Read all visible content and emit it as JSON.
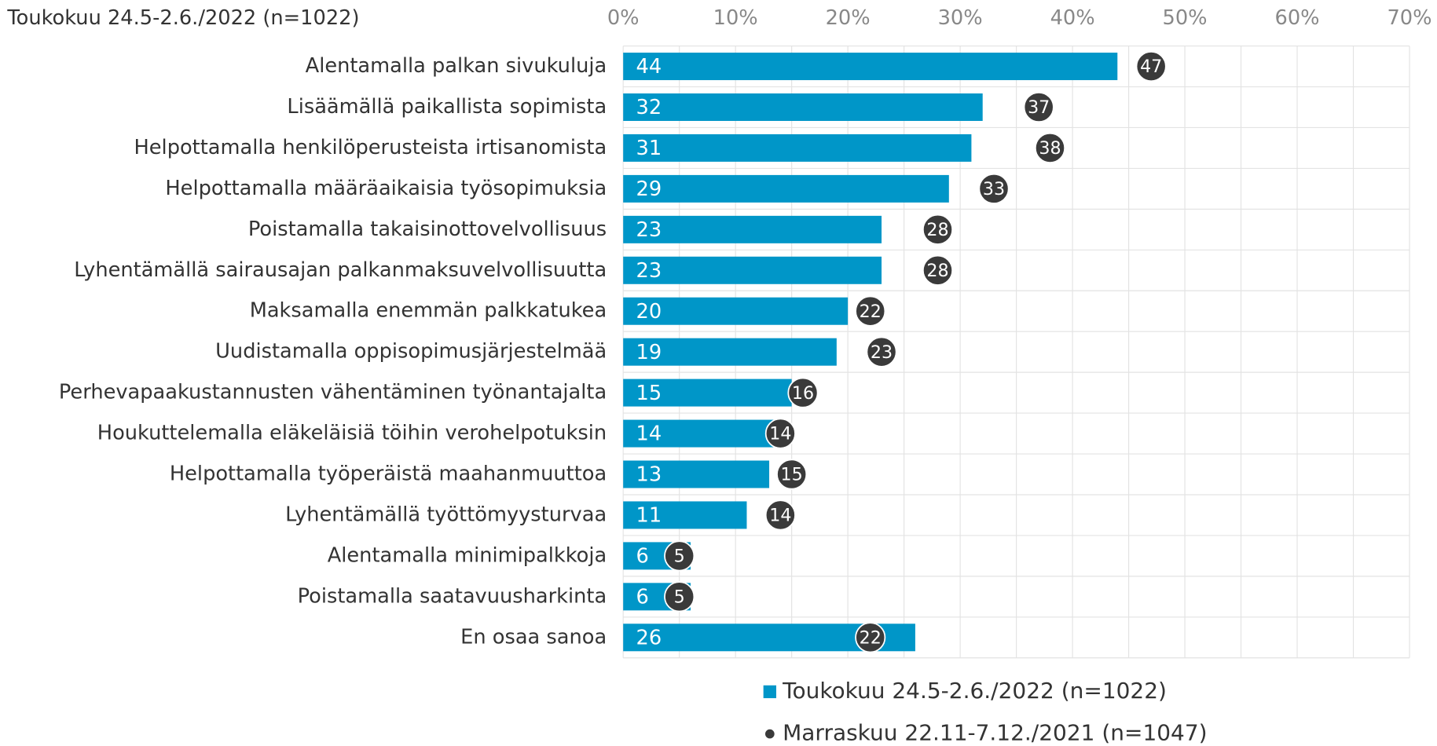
{
  "chart_data": {
    "type": "bar",
    "orientation": "horizontal",
    "title": "Toukokuu 24.5-2.6./2022 (n=1022)",
    "categories": [
      "Alentamalla palkan sivukuluja",
      "Lisäämällä paikallista sopimista",
      "Helpottamalla henkilöperusteista irtisanomista",
      "Helpottamalla määräaikaisia työsopimuksia",
      "Poistamalla takaisinottovelvollisuus",
      "Lyhentämällä sairausajan palkanmaksuvelvollisuutta",
      "Maksamalla enemmän palkkatukea",
      "Uudistamalla oppisopimusjärjestelmää",
      "Perhevapaakustannusten vähentäminen työnantajalta",
      "Houkuttelemalla eläkeläisiä töihin verohelpotuksin",
      "Helpottamalla työperäistä maahanmuuttoa",
      "Lyhentämällä työttömyysturvaa",
      "Alentamalla minimipalkkoja",
      "Poistamalla saatavuusharkinta",
      "En osaa sanoa"
    ],
    "series": [
      {
        "name": "Toukokuu 24.5-2.6./2022 (n=1022)",
        "type": "bar",
        "color": "#0096c8",
        "values": [
          44,
          32,
          31,
          29,
          23,
          23,
          20,
          19,
          15,
          14,
          13,
          11,
          6,
          6,
          26
        ]
      },
      {
        "name": "Marraskuu 22.11-7.12./2021 (n=1047)",
        "type": "dot",
        "color": "#3a3a3a",
        "values": [
          47,
          37,
          38,
          33,
          28,
          28,
          22,
          23,
          16,
          14,
          15,
          14,
          5,
          5,
          22
        ]
      }
    ],
    "xlim": [
      0,
      70
    ],
    "xticks": [
      {
        "value": 0,
        "label": "0%"
      },
      {
        "value": 10,
        "label": "10%"
      },
      {
        "value": 20,
        "label": "20%"
      },
      {
        "value": 30,
        "label": "30%"
      },
      {
        "value": 40,
        "label": "40%"
      },
      {
        "value": 50,
        "label": "50%"
      },
      {
        "value": 60,
        "label": "60%"
      },
      {
        "value": 70,
        "label": "70%"
      }
    ],
    "grid": true,
    "legend": "bottom"
  }
}
